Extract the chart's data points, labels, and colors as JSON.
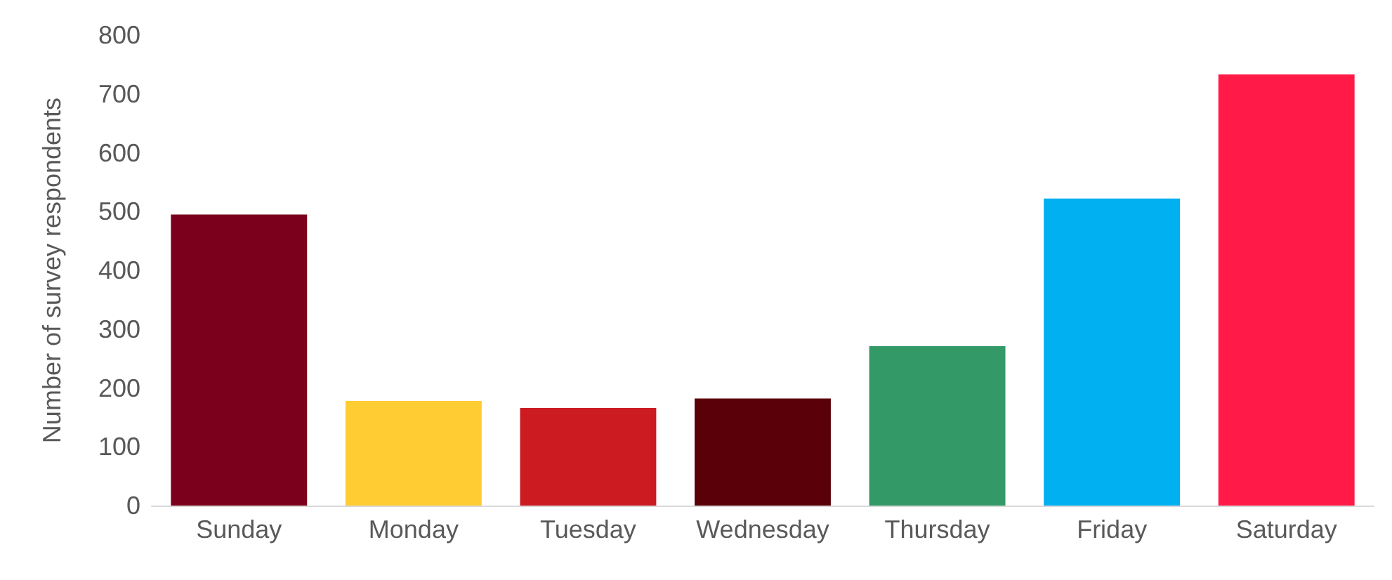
{
  "chart_data": {
    "type": "bar",
    "ylabel": "Number of survey respondents",
    "categories": [
      "Sunday",
      "Monday",
      "Tuesday",
      "Wednesday",
      "Thursday",
      "Friday",
      "Saturday"
    ],
    "values": [
      495,
      178,
      166,
      182,
      271,
      522,
      733
    ],
    "colors": [
      "#7b001c",
      "#ffcc33",
      "#cc1c22",
      "#5a0008",
      "#339966",
      "#00b0f0",
      "#ff1a47"
    ],
    "ylim": [
      0,
      800
    ],
    "yticks": [
      0,
      100,
      200,
      300,
      400,
      500,
      600,
      700,
      800
    ],
    "grid": false
  }
}
